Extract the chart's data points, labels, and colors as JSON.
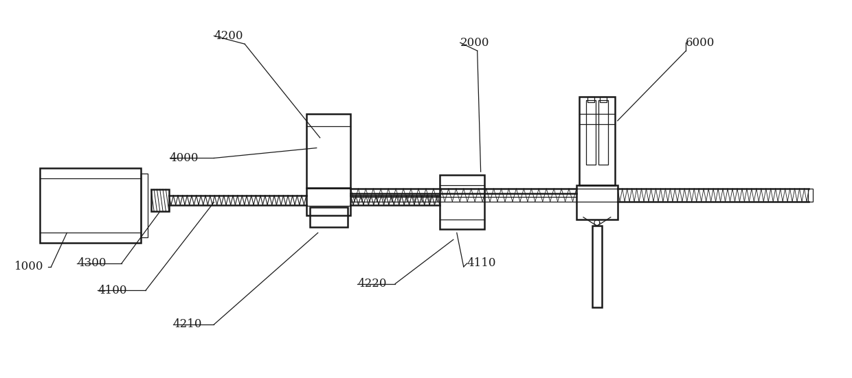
{
  "bg_color": "#ffffff",
  "lc": "#1a1a1a",
  "lw": 1.8,
  "lw_thin": 0.9,
  "font_size": 12,
  "fig_w": 12.4,
  "fig_h": 5.51
}
